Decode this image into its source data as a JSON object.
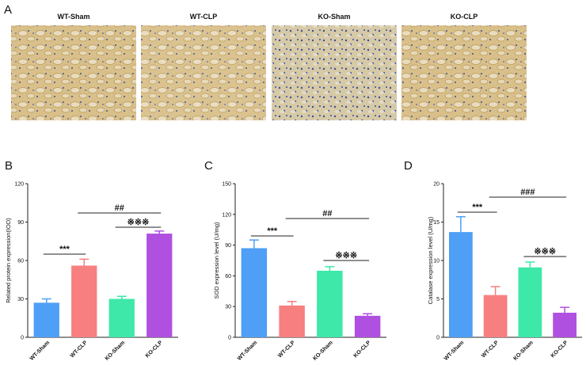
{
  "panel_a": {
    "label": "A",
    "images": [
      {
        "label": "WT-Sham"
      },
      {
        "label": "WT-CLP"
      },
      {
        "label": "KO-Sham"
      },
      {
        "label": "KO-CLP"
      }
    ]
  },
  "chart_data": [
    {
      "type": "bar",
      "panel": "B",
      "y_label": "Related protein expression(IOD)",
      "categories": [
        "WT-Sham",
        "WT-CLP",
        "KO-Sham",
        "KO-CLP"
      ],
      "values": [
        27,
        56,
        30,
        81
      ],
      "errors": [
        3,
        5,
        2,
        2
      ],
      "colors": [
        "#4e9ff5",
        "#f77f7f",
        "#3ee8a8",
        "#b050e0"
      ],
      "ylim": [
        0,
        120
      ],
      "yticks": [
        0,
        30,
        60,
        90,
        120
      ],
      "annotations": [
        "***",
        "##",
        "※※※"
      ]
    },
    {
      "type": "bar",
      "panel": "C",
      "y_label": "SOD expression level (U/mg)",
      "categories": [
        "WT-Sham",
        "WT-CLP",
        "KO-Sham",
        "KO-CLP"
      ],
      "values": [
        87,
        31,
        65,
        21
      ],
      "errors": [
        8,
        4,
        4,
        2
      ],
      "colors": [
        "#4e9ff5",
        "#f77f7f",
        "#3ee8a8",
        "#b050e0"
      ],
      "ylim": [
        0,
        150
      ],
      "yticks": [
        0,
        30,
        60,
        90,
        120,
        150
      ],
      "annotations": [
        "***",
        "##",
        "※※※"
      ]
    },
    {
      "type": "bar",
      "panel": "D",
      "y_label": "Catalase expression level (U/mg)",
      "categories": [
        "WT-Sham",
        "WT-CLP",
        "KO-Sham",
        "KO-CLP"
      ],
      "values": [
        13.7,
        5.5,
        9.1,
        3.2
      ],
      "errors": [
        2,
        1.1,
        0.7,
        0.7
      ],
      "colors": [
        "#4e9ff5",
        "#f77f7f",
        "#3ee8a8",
        "#b050e0"
      ],
      "ylim": [
        0,
        20
      ],
      "yticks": [
        0,
        5,
        10,
        15,
        20
      ],
      "annotations": [
        "***",
        "###",
        "※※※"
      ]
    }
  ]
}
